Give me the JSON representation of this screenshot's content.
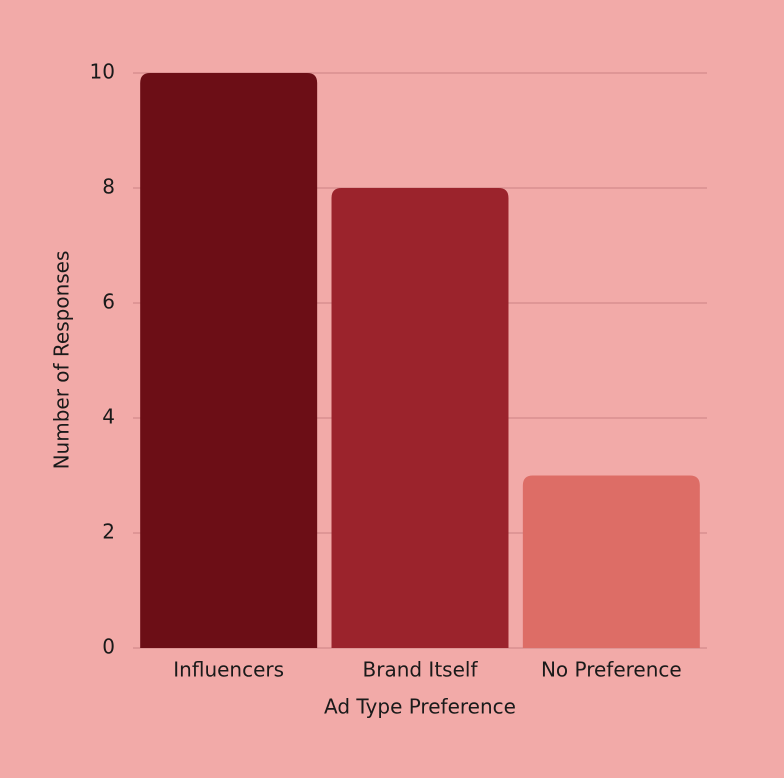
{
  "chart_data": {
    "type": "bar",
    "x_label": "Ad Type Preference",
    "y_label": "Number of Responses",
    "categories": [
      "Influencers",
      "Brand Itself",
      "No Preference"
    ],
    "values": [
      10,
      8,
      3
    ],
    "colors": [
      "#6c0e16",
      "#9b232c",
      "#dd6d66"
    ],
    "ylim": [
      0,
      10
    ],
    "yticks": [
      0,
      2,
      4,
      6,
      8,
      10
    ],
    "grid": true
  }
}
